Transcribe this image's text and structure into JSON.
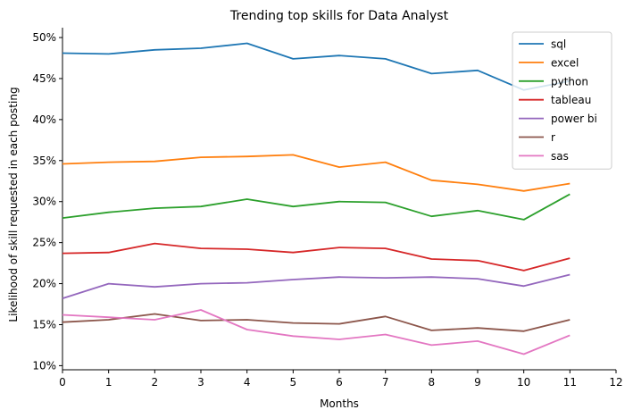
{
  "chart_data": {
    "type": "line",
    "title": "Trending top skills for Data Analyst",
    "xlabel": "Months",
    "ylabel": "Likelihood of skill requested in each posting",
    "xlim": [
      0,
      12
    ],
    "ylim": [
      9.5,
      51.2
    ],
    "x_ticks": [
      0,
      1,
      2,
      3,
      4,
      5,
      6,
      7,
      8,
      9,
      10,
      11,
      12
    ],
    "y_ticks": [
      10,
      15,
      20,
      25,
      30,
      35,
      40,
      45,
      50
    ],
    "y_tick_format": "percent",
    "grid": false,
    "legend_position": "top-right",
    "x": [
      0,
      1,
      2,
      3,
      4,
      5,
      6,
      7,
      8,
      9,
      10,
      11
    ],
    "series": [
      {
        "name": "sql",
        "color": "#1f77b4",
        "values": [
          48.1,
          48.0,
          48.5,
          48.7,
          49.3,
          47.4,
          47.8,
          47.4,
          45.6,
          46.0,
          43.6,
          44.7
        ]
      },
      {
        "name": "excel",
        "color": "#ff7f0e",
        "values": [
          34.6,
          34.8,
          34.9,
          35.4,
          35.5,
          35.7,
          34.2,
          34.8,
          32.6,
          32.1,
          31.3,
          32.2
        ]
      },
      {
        "name": "python",
        "color": "#2ca02c",
        "values": [
          28.0,
          28.7,
          29.2,
          29.4,
          30.3,
          29.4,
          30.0,
          29.9,
          28.2,
          28.9,
          27.8,
          30.9
        ]
      },
      {
        "name": "tableau",
        "color": "#d62728",
        "values": [
          23.7,
          23.8,
          24.9,
          24.3,
          24.2,
          23.8,
          24.4,
          24.3,
          23.0,
          22.8,
          21.6,
          23.1
        ]
      },
      {
        "name": "power bi",
        "color": "#9467bd",
        "values": [
          18.2,
          20.0,
          19.6,
          20.0,
          20.1,
          20.5,
          20.8,
          20.7,
          20.8,
          20.6,
          19.7,
          21.1
        ]
      },
      {
        "name": "r",
        "color": "#8c564b",
        "values": [
          15.3,
          15.6,
          16.3,
          15.5,
          15.6,
          15.2,
          15.1,
          16.0,
          14.3,
          14.6,
          14.2,
          15.6
        ]
      },
      {
        "name": "sas",
        "color": "#e377c2",
        "values": [
          16.2,
          15.9,
          15.6,
          16.8,
          14.4,
          13.6,
          13.2,
          13.8,
          12.5,
          13.0,
          11.4,
          13.7
        ]
      }
    ]
  }
}
